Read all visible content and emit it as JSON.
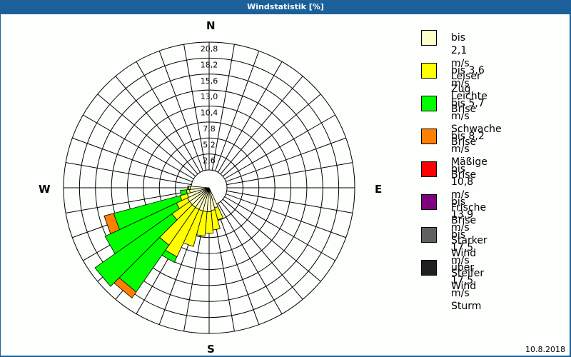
{
  "window": {
    "title": "Windstatistik [%]"
  },
  "footer": {
    "date": "10.8.2018"
  },
  "compass": {
    "n": "N",
    "e": "E",
    "s": "S",
    "w": "W"
  },
  "legend": [
    {
      "label1": "bis 2,1 m/s",
      "label2": "Leiser Zug",
      "color": "#ffffc8"
    },
    {
      "label1": "bis 3,6 m/s",
      "label2": "Leichte Brise",
      "color": "#ffff00"
    },
    {
      "label1": "bis 5,7 m/s",
      "label2": "Schwache Brise",
      "color": "#00ff00"
    },
    {
      "label1": "bis 8,2 m/s",
      "label2": "Mäßige Brise",
      "color": "#ff8000"
    },
    {
      "label1": "bis 10,8 m/s",
      "label2": "Frische Brise",
      "color": "#ff0000"
    },
    {
      "label1": "bis 13,9 m/s",
      "label2": "Starker Wind",
      "color": "#800080"
    },
    {
      "label1": "bis 17,5 m/s",
      "label2": "Steifer Wind",
      "color": "#606060"
    },
    {
      "label1": "über 17,5 m/s",
      "label2": "Sturm",
      "color": "#202020"
    }
  ],
  "chart_data": {
    "type": "wind-rose",
    "title": "Windstatistik [%]",
    "radial_ticks": [
      "2,6",
      "5,2",
      "7,8",
      "10,4",
      "13,0",
      "15,6",
      "18,2",
      "20,8"
    ],
    "radial_max": 20.8,
    "sector_width_deg": 10,
    "series_names": [
      "bis 2,1 m/s",
      "bis 3,6 m/s",
      "bis 5,7 m/s",
      "bis 8,2 m/s",
      "bis 10,8 m/s",
      "bis 13,9 m/s",
      "bis 17,5 m/s",
      "über 17,5 m/s"
    ],
    "sectors": [
      {
        "dir": 160,
        "cum": [
          0.5,
          2.5,
          2.5,
          2.5
        ]
      },
      {
        "dir": 170,
        "cum": [
          0.8,
          4.0,
          4.0,
          4.0
        ]
      },
      {
        "dir": 180,
        "cum": [
          1.0,
          4.5,
          4.5,
          4.5
        ]
      },
      {
        "dir": 190,
        "cum": [
          1.0,
          5.0,
          5.0,
          5.0
        ]
      },
      {
        "dir": 200,
        "cum": [
          1.0,
          7.0,
          7.0,
          7.0
        ]
      },
      {
        "dir": 210,
        "cum": [
          1.0,
          9.5,
          10.5,
          10.5
        ]
      },
      {
        "dir": 220,
        "cum": [
          1.0,
          8.5,
          17.8,
          19.0
        ]
      },
      {
        "dir": 230,
        "cum": [
          1.0,
          4.5,
          19.8,
          19.8
        ]
      },
      {
        "dir": 240,
        "cum": [
          1.0,
          3.0,
          15.8,
          15.8
        ]
      },
      {
        "dir": 250,
        "cum": [
          0.8,
          2.0,
          13.2,
          14.8
        ]
      },
      {
        "dir": 260,
        "cum": [
          0.3,
          0.8,
          1.8,
          1.8
        ]
      },
      {
        "dir": 270,
        "cum": [
          0.2,
          0.4,
          0.6,
          0.6
        ]
      }
    ]
  }
}
